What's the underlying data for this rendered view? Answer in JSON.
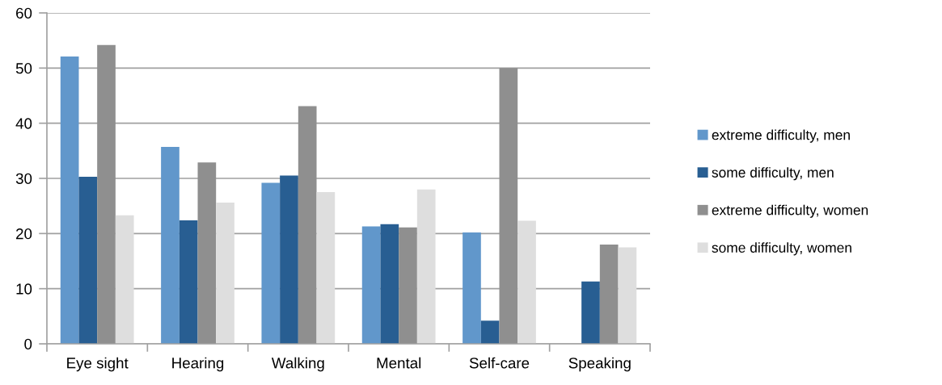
{
  "chart_data": {
    "type": "bar",
    "categories": [
      "Eye sight",
      "Hearing",
      "Walking",
      "Mental",
      "Self-care",
      "Speaking"
    ],
    "series": [
      {
        "name": "extreme difficulty, men",
        "color": "#6197cb",
        "values": [
          52.1,
          35.7,
          29.2,
          21.3,
          20.2,
          null
        ]
      },
      {
        "name": "some difficulty, men",
        "color": "#285e92",
        "values": [
          30.3,
          22.4,
          30.5,
          21.7,
          4.2,
          11.3
        ]
      },
      {
        "name": "extreme difficulty, women",
        "color": "#8f8f8f",
        "values": [
          54.2,
          32.9,
          43.1,
          21.1,
          50.0,
          18.0
        ]
      },
      {
        "name": "some difficulty, women",
        "color": "#dedede",
        "values": [
          23.3,
          25.6,
          27.5,
          28.0,
          22.3,
          17.5
        ]
      }
    ],
    "ylim": [
      0,
      60
    ],
    "yticks": [
      0,
      10,
      20,
      30,
      40,
      50,
      60
    ],
    "grid": "y",
    "legend": "right"
  }
}
